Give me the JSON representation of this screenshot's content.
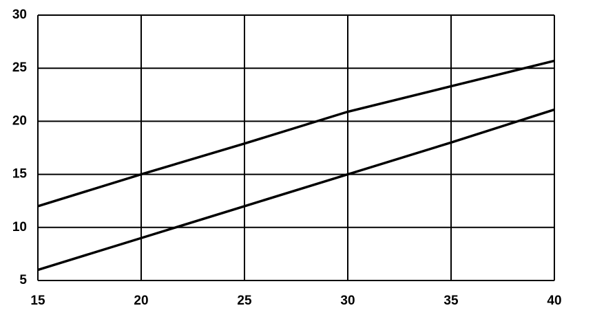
{
  "chart_data": {
    "type": "line",
    "x": [
      15,
      20,
      25,
      30,
      35,
      40
    ],
    "series": [
      {
        "color": "#000000",
        "values": [
          12,
          15,
          17.9,
          20.9,
          23.3,
          25.7
        ]
      },
      {
        "color": "#000000",
        "values": [
          6,
          9,
          12,
          15,
          18,
          21.1
        ]
      }
    ],
    "xlim": [
      15,
      40
    ],
    "xticks": [
      15,
      20,
      25,
      30,
      35,
      40
    ],
    "ylim": [
      5,
      30
    ],
    "yticks": [
      5,
      10,
      15,
      20,
      25,
      30
    ],
    "grid": true
  }
}
